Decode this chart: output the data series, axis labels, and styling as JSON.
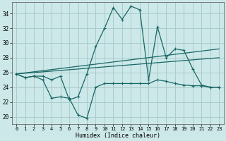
{
  "xlabel": "Humidex (Indice chaleur)",
  "background_color": "#cce8e8",
  "grid_color": "#aacccc",
  "line_color": "#1a6666",
  "xlim": [
    -0.5,
    23.5
  ],
  "ylim": [
    19.0,
    35.5
  ],
  "yticks": [
    20,
    22,
    24,
    26,
    28,
    30,
    32,
    34
  ],
  "xticks": [
    0,
    1,
    2,
    3,
    4,
    5,
    6,
    7,
    8,
    9,
    10,
    11,
    12,
    13,
    14,
    15,
    16,
    17,
    18,
    19,
    20,
    21,
    22,
    23
  ],
  "xtick_labels": [
    "0",
    "1",
    "2",
    "3",
    "4",
    "5",
    "6",
    "7",
    "8",
    "9",
    "10",
    "11",
    "12",
    "13",
    "14",
    "15",
    "16",
    "17",
    "18",
    "19",
    "20",
    "21",
    "22",
    "23"
  ],
  "curve1_y": [
    25.8,
    25.3,
    25.5,
    25.5,
    25.0,
    25.5,
    22.3,
    22.7,
    25.8,
    29.5,
    32.0,
    34.8,
    33.2,
    35.0,
    34.5,
    25.0,
    32.2,
    28.0,
    29.2,
    29.0,
    26.5,
    24.3,
    24.0,
    24.0
  ],
  "curve2_y": [
    25.8,
    25.3,
    25.5,
    25.0,
    22.5,
    22.7,
    22.5,
    20.2,
    19.8,
    24.0,
    24.5,
    24.5,
    24.5,
    24.5,
    24.5,
    24.5,
    25.0,
    24.8,
    24.5,
    24.3,
    24.2,
    24.2,
    24.0,
    24.0
  ],
  "line3_y0": 25.8,
  "line3_y1": 29.2,
  "line4_y0": 25.8,
  "line4_y1": 28.0
}
